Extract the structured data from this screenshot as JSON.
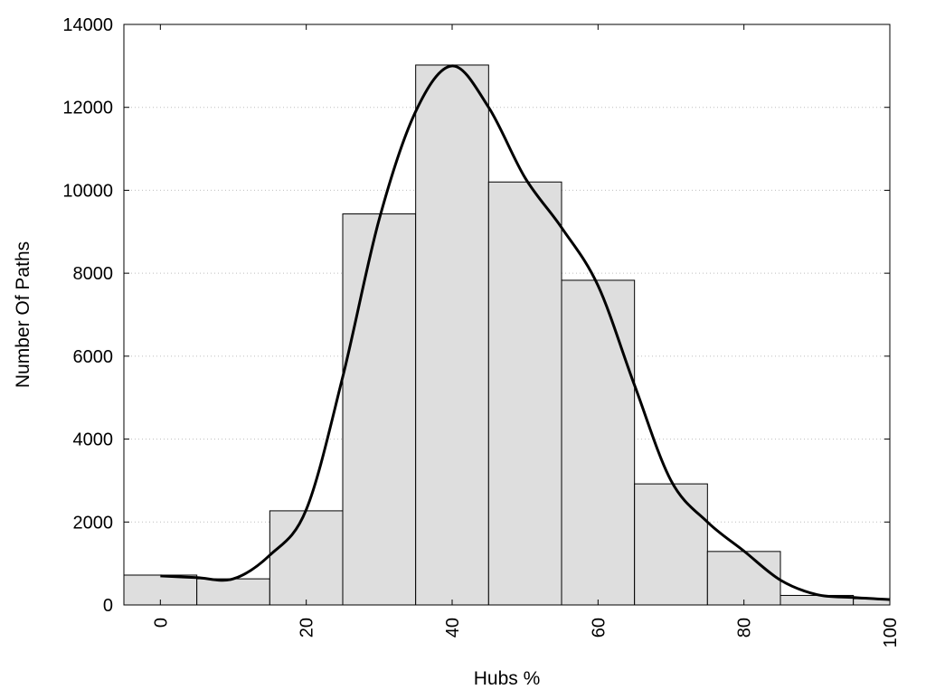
{
  "chart_data": {
    "type": "bar",
    "xlabel": "Hubs %",
    "ylabel": "Number Of Paths",
    "xlim": [
      -5,
      100
    ],
    "ylim": [
      0,
      14000
    ],
    "x_ticks": [
      0,
      20,
      40,
      60,
      80,
      100
    ],
    "y_ticks": [
      0,
      2000,
      4000,
      6000,
      8000,
      10000,
      12000,
      14000
    ],
    "grid": "horizontal-dotted",
    "bin_width": 10,
    "bar_color": "#dedede",
    "bins": [
      {
        "center": 0,
        "value": 720
      },
      {
        "center": 10,
        "value": 630
      },
      {
        "center": 20,
        "value": 2270
      },
      {
        "center": 30,
        "value": 9430
      },
      {
        "center": 40,
        "value": 13020
      },
      {
        "center": 50,
        "value": 10200
      },
      {
        "center": 60,
        "value": 7830
      },
      {
        "center": 70,
        "value": 2920
      },
      {
        "center": 80,
        "value": 1290
      },
      {
        "center": 90,
        "value": 230
      },
      {
        "center": 100,
        "value": 150
      }
    ],
    "curve": {
      "color": "#000000",
      "points": [
        [
          0,
          700
        ],
        [
          5,
          660
        ],
        [
          10,
          630
        ],
        [
          15,
          1200
        ],
        [
          20,
          2300
        ],
        [
          25,
          5500
        ],
        [
          30,
          9300
        ],
        [
          35,
          11900
        ],
        [
          40,
          13000
        ],
        [
          45,
          12000
        ],
        [
          50,
          10300
        ],
        [
          55,
          9100
        ],
        [
          60,
          7700
        ],
        [
          65,
          5300
        ],
        [
          70,
          3000
        ],
        [
          75,
          2000
        ],
        [
          80,
          1300
        ],
        [
          85,
          600
        ],
        [
          90,
          250
        ],
        [
          95,
          180
        ],
        [
          100,
          130
        ]
      ]
    }
  }
}
